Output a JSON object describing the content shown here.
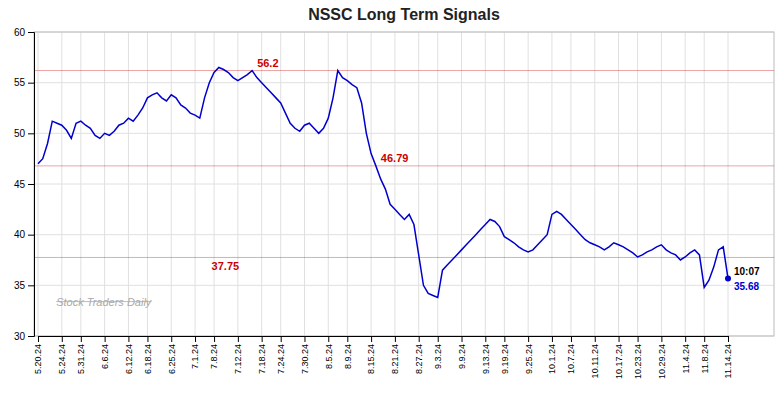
{
  "chart_data": {
    "type": "line",
    "title": "NSSC Long Term Signals",
    "color": "#0000cc",
    "categories": [
      "5.20.24",
      null,
      null,
      null,
      null,
      "5.24.24",
      null,
      null,
      null,
      "5.31.24",
      null,
      null,
      null,
      null,
      "6.6.24",
      null,
      null,
      null,
      null,
      "6.12.24",
      null,
      null,
      null,
      "6.18.24",
      null,
      null,
      null,
      null,
      "6.25.24",
      null,
      null,
      null,
      null,
      "7.1.24",
      null,
      null,
      null,
      "7.8.24",
      null,
      null,
      null,
      null,
      "7.12.24",
      null,
      null,
      null,
      null,
      "7.18.24",
      null,
      null,
      null,
      "7.24.24",
      null,
      null,
      null,
      null,
      "7.30.24",
      null,
      null,
      null,
      null,
      "8.5.24",
      null,
      null,
      null,
      "8.9.24",
      null,
      null,
      null,
      null,
      "8.15.24",
      null,
      null,
      null,
      null,
      "8.21.24",
      null,
      null,
      null,
      null,
      "8.27.24",
      null,
      null,
      null,
      "9.3.24",
      null,
      null,
      null,
      null,
      "9.9.24",
      null,
      null,
      null,
      null,
      "9.13.24",
      null,
      null,
      null,
      "9.19.24",
      null,
      null,
      null,
      null,
      "9.25.24",
      null,
      null,
      null,
      null,
      "10.1.24",
      null,
      null,
      null,
      "10.7.24",
      null,
      null,
      null,
      null,
      "10.11.24",
      null,
      null,
      null,
      null,
      "10.17.24",
      null,
      null,
      null,
      "10.23.24",
      null,
      null,
      null,
      null,
      "10.29.24",
      null,
      null,
      null,
      null,
      "11.4.24",
      null,
      null,
      null,
      "11.8.24",
      null,
      null,
      null,
      null,
      "11.14.24"
    ],
    "values": [
      47.0,
      47.5,
      49.0,
      51.2,
      51.0,
      50.8,
      50.3,
      49.5,
      51.0,
      51.2,
      50.8,
      50.5,
      49.8,
      49.5,
      50.0,
      49.8,
      50.2,
      50.8,
      51.0,
      51.5,
      51.2,
      51.8,
      52.5,
      53.5,
      53.8,
      54.0,
      53.5,
      53.2,
      53.8,
      53.5,
      52.8,
      52.5,
      52.0,
      51.8,
      51.5,
      53.5,
      55.0,
      56.0,
      56.5,
      56.3,
      56.0,
      55.5,
      55.2,
      55.5,
      55.8,
      56.2,
      55.5,
      55.0,
      54.5,
      54.0,
      53.5,
      53.0,
      52.0,
      51.0,
      50.5,
      50.2,
      50.8,
      51.0,
      50.5,
      50.0,
      50.5,
      51.5,
      53.5,
      56.2,
      55.5,
      55.2,
      54.8,
      54.5,
      53.0,
      50.0,
      48.0,
      46.79,
      45.5,
      44.5,
      43.0,
      42.5,
      42.0,
      41.5,
      42.0,
      41.0,
      38.0,
      35.0,
      34.2,
      34.0,
      33.8,
      36.5,
      37.0,
      37.5,
      38.0,
      38.5,
      39.0,
      39.5,
      40.0,
      40.5,
      41.0,
      41.5,
      41.3,
      40.8,
      39.8,
      39.5,
      39.2,
      38.8,
      38.5,
      38.3,
      38.5,
      39.0,
      39.5,
      40.0,
      42.0,
      42.3,
      42.0,
      41.5,
      41.0,
      40.5,
      40.0,
      39.5,
      39.2,
      39.0,
      38.8,
      38.5,
      38.8,
      39.2,
      39.0,
      38.8,
      38.5,
      38.2,
      37.8,
      38.0,
      38.3,
      38.5,
      38.8,
      39.0,
      38.5,
      38.2,
      38.0,
      37.5,
      37.8,
      38.2,
      38.5,
      38.0,
      34.8,
      35.5,
      36.8,
      38.5,
      38.8,
      35.68
    ],
    "hlines": {
      "values": [
        56.2,
        46.79,
        37.75
      ],
      "color": "#cc0000"
    },
    "annotations": [
      {
        "text": "10:07"
      },
      {
        "text": "Stock Traders Daily"
      }
    ],
    "ylim": [
      30,
      60
    ],
    "yticks": [
      30,
      35,
      40,
      45,
      50,
      55,
      60
    ],
    "grid": true
  }
}
